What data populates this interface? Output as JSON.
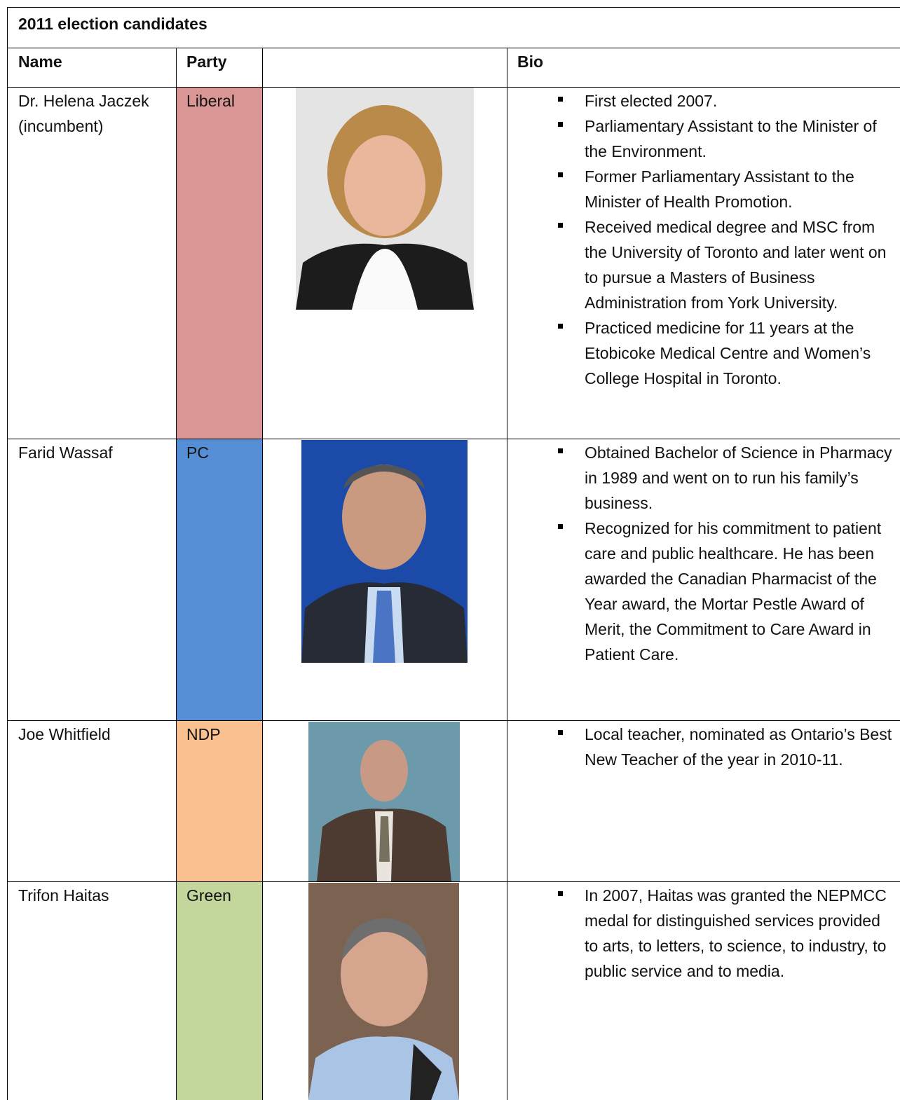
{
  "table": {
    "title": "2011 election candidates",
    "headers": [
      "Name",
      "Party",
      "Bio"
    ],
    "rows": [
      {
        "name": "Dr. Helena Jaczek (incumbent)",
        "party": "Liberal",
        "bio": [
          "First elected 2007.",
          "Parliamentary Assistant to the Minister of the Environment.",
          "Former Parliamentary Assistant to the Minister of Health Promotion.",
          "Received medical degree and MSC from the University of Toronto and later went on to pursue a Masters of Business Administration from York University.",
          "Practiced medicine for 11 years at the Etobicoke Medical Centre and Women’s College Hospital in Toronto."
        ]
      },
      {
        "name": "Farid Wassaf",
        "party": "PC",
        "bio": [
          "Obtained Bachelor of Science in Pharmacy in 1989 and went on to run his family’s business.",
          "Recognized for his commitment to patient care and public healthcare.   He has been awarded the Canadian Pharmacist of the Year award, the Mortar Pestle Award of Merit, the Commitment to Care Award in Patient Care."
        ]
      },
      {
        "name": "Joe Whitfield",
        "party": "NDP",
        "bio": [
          "Local teacher, nominated as Ontario’s Best New Teacher of the year in 2010-11."
        ]
      },
      {
        "name": "Trifon Haitas",
        "party": "Green",
        "bio": [
          "In 2007, Haitas was granted the NEPMCC medal for distinguished services provided to arts, to letters, to science, to industry, to public service and to media."
        ]
      }
    ]
  }
}
